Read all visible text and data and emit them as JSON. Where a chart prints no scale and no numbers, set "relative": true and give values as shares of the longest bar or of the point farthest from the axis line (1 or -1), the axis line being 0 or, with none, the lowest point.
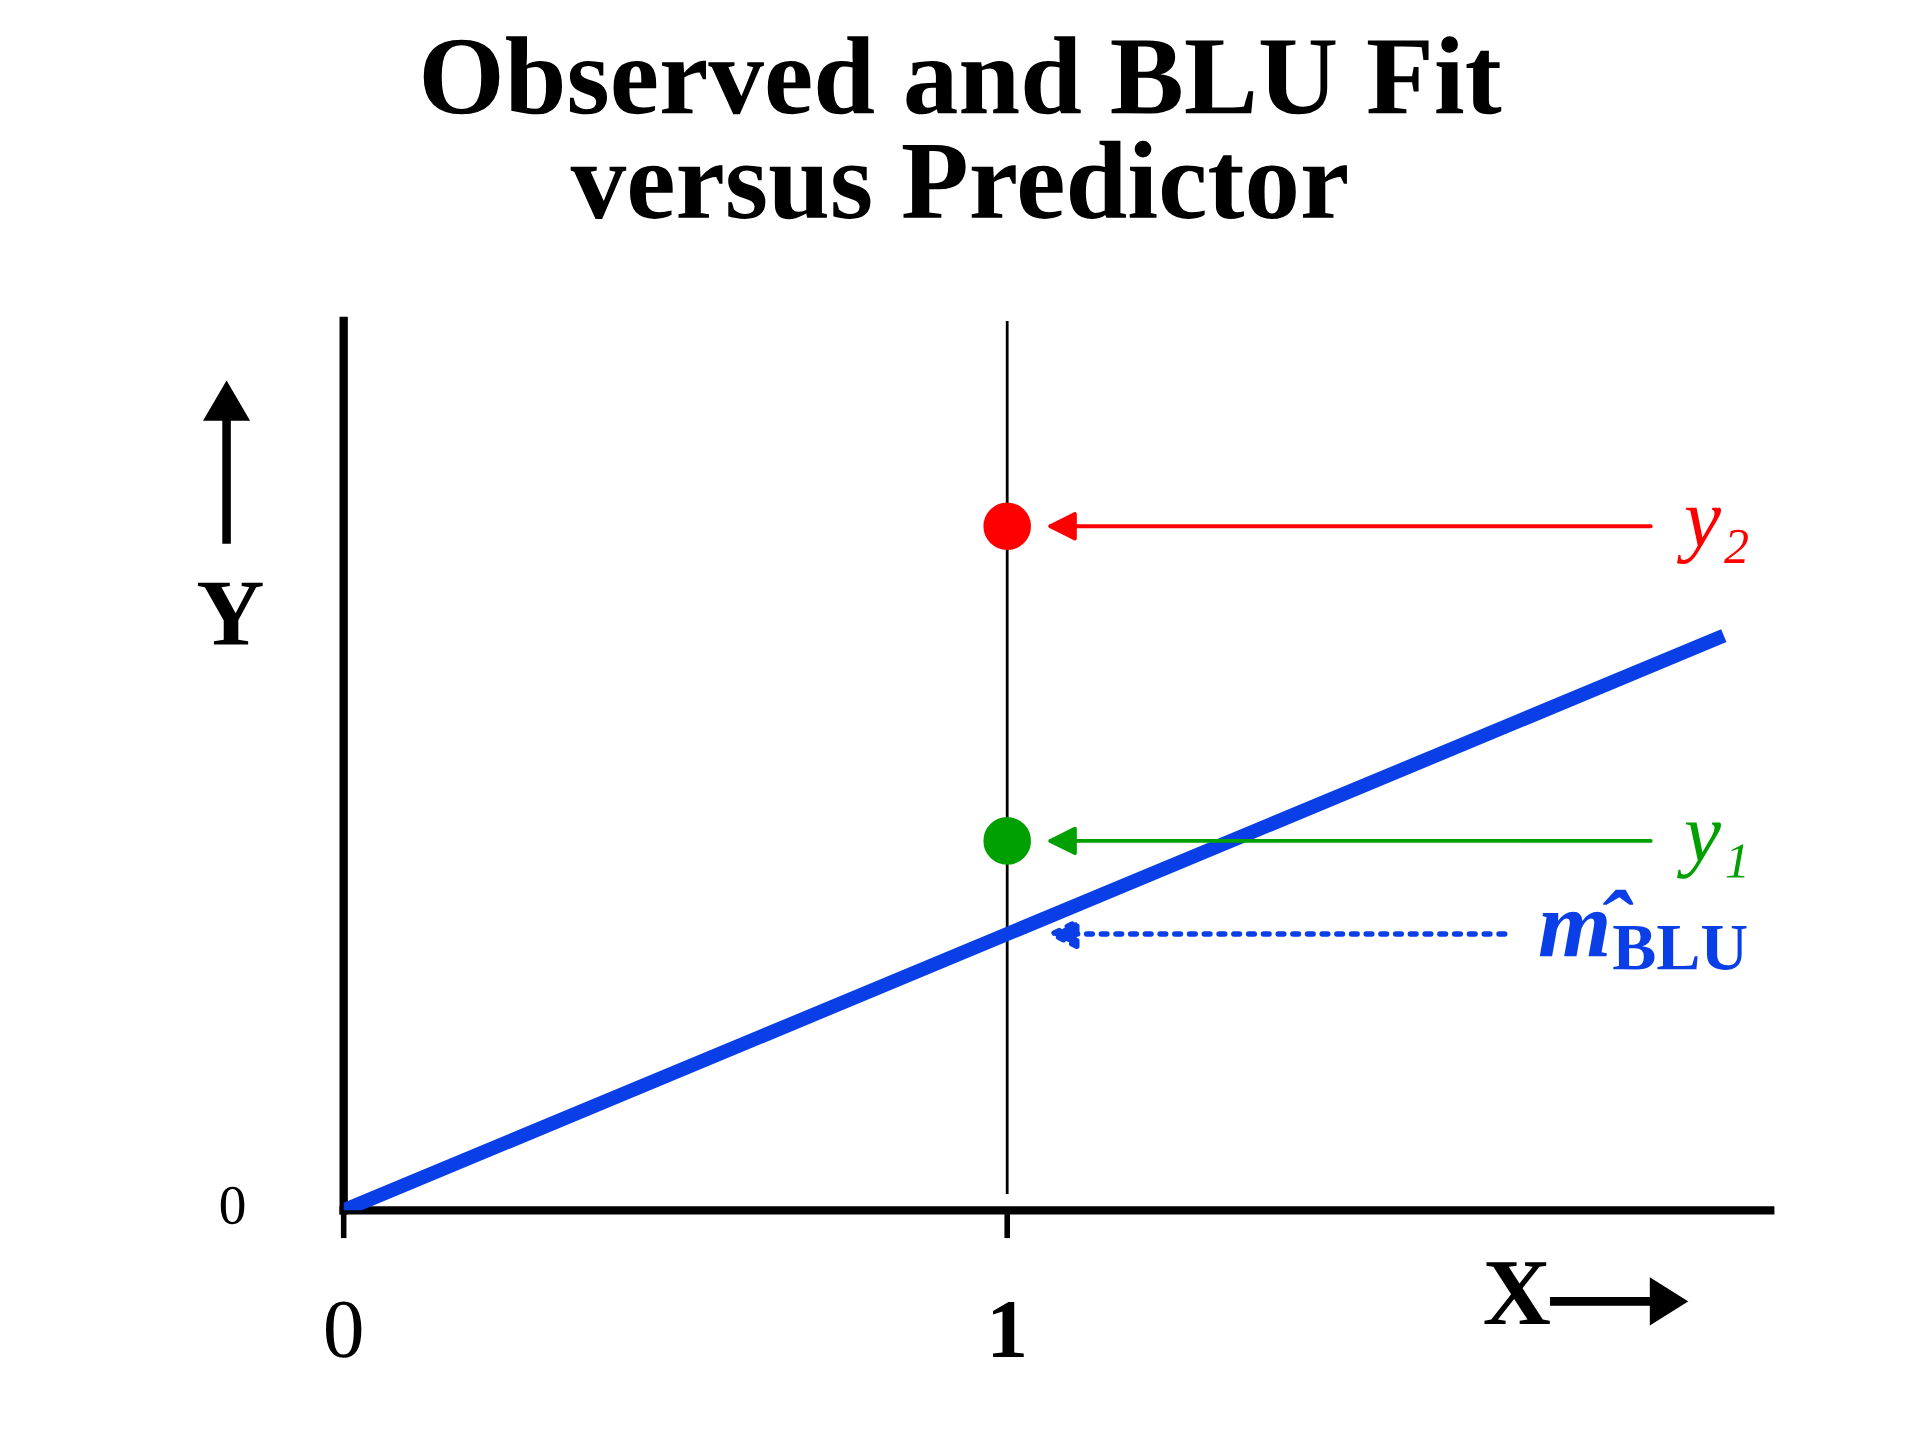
{
  "chart_data": {
    "type": "line",
    "title": "Observed and BLU Fit\nversus Predictor",
    "xlabel": "X",
    "ylabel": "Y",
    "relative": true,
    "xlim": [
      0,
      2.15
    ],
    "xticks": [
      0,
      1
    ],
    "series": [
      {
        "color": "#0a3ee6",
        "x": [
          0,
          2.08
        ],
        "values": [
          0,
          0.84
        ]
      },
      {
        "type": "scatter",
        "color": "#ff0000",
        "x": [
          1
        ],
        "values": [
          1
        ],
        "marker": "circle"
      },
      {
        "type": "scatter",
        "color": "#00a000",
        "x": [
          1
        ],
        "values": [
          0.54
        ],
        "marker": "circle"
      }
    ],
    "ref_lines": [
      {
        "axis": "x",
        "value": 1,
        "color": "#000000"
      }
    ],
    "annotations": [
      "y₂",
      "y₁",
      "m̂$_{BLU}$",
      {
        "text": "0",
        "x": 0,
        "y": 0
      }
    ],
    "grid": false,
    "legend": false
  }
}
